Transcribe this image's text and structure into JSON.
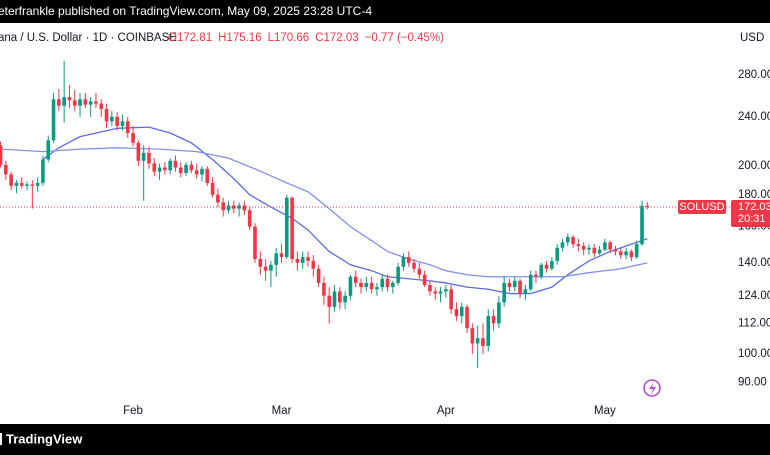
{
  "header": {
    "publish_note": "eterfrankle published on TradingView.com, May 09, 2025 23:28 UTC-4",
    "brand": "TradingView"
  },
  "chart_data": {
    "type": "candlestick",
    "title": "ana / U.S. Dollar · 1D · COINBASE",
    "ohlc": [
      "O172.81",
      "H175.16",
      "L170.66",
      "C172.03"
    ],
    "change": "−0.77 (−0.45%)",
    "currency": "USD",
    "symbol": "SOLUSD",
    "countdown": "20:31",
    "up_color": "#089981",
    "down_color": "#f23645",
    "open": [
      216,
      201,
      194,
      186,
      188,
      186,
      187,
      186,
      188,
      205,
      220,
      256,
      250,
      258,
      255,
      250,
      256,
      251,
      254,
      252,
      247,
      236,
      240,
      232,
      236,
      226,
      218,
      204,
      210,
      202,
      196,
      199,
      197,
      204,
      199,
      195,
      201,
      197,
      194,
      198,
      188,
      180,
      175,
      170,
      173,
      171,
      173,
      170,
      160,
      142,
      138,
      136,
      139,
      145,
      143,
      178,
      142,
      140,
      143,
      141,
      137,
      130,
      124,
      119,
      126,
      121,
      124,
      133,
      130,
      128,
      130,
      127,
      128,
      132,
      128,
      130,
      138,
      143,
      140,
      137,
      134,
      129,
      126,
      125,
      126,
      127,
      118,
      115,
      119,
      110,
      104,
      106,
      103,
      115,
      112,
      121,
      130,
      128,
      131,
      125,
      127,
      134,
      133,
      139,
      137,
      141,
      148,
      151,
      154,
      150,
      149,
      147,
      148,
      145,
      147,
      151,
      147,
      146,
      144,
      146,
      143,
      150,
      172.81
    ],
    "high": [
      219,
      204,
      196,
      190,
      192,
      189,
      190,
      192,
      208,
      224,
      262,
      266,
      295,
      270,
      265,
      262,
      262,
      258,
      262,
      256,
      252,
      245,
      244,
      242,
      240,
      232,
      220,
      216,
      215,
      206,
      202,
      203,
      206,
      208,
      203,
      203,
      204,
      202,
      200,
      200,
      192,
      184,
      178,
      176,
      176,
      175,
      176,
      172,
      162,
      146,
      142,
      141,
      148,
      150,
      180,
      179,
      146,
      146,
      146,
      144,
      139,
      133,
      128,
      129,
      128,
      126,
      134,
      136,
      132,
      133,
      133,
      130,
      134,
      134,
      131,
      140,
      145,
      146,
      142,
      140,
      136,
      131,
      128,
      128,
      129,
      129,
      121,
      121,
      120,
      112,
      111,
      112,
      118,
      118,
      124,
      133,
      132,
      133,
      132,
      129,
      136,
      136,
      140,
      141,
      143,
      150,
      153,
      156,
      155,
      153,
      151,
      150,
      150,
      149,
      153,
      152,
      149,
      148,
      148,
      147,
      152,
      176,
      175.16
    ],
    "low": [
      199,
      190,
      183,
      181,
      184,
      183,
      171,
      182,
      186,
      203,
      218,
      245,
      235,
      248,
      245,
      240,
      248,
      240,
      248,
      240,
      230,
      232,
      228,
      228,
      222,
      215,
      200,
      176,
      198,
      193,
      190,
      194,
      194,
      196,
      192,
      193,
      195,
      191,
      189,
      186,
      178,
      172,
      166,
      168,
      168,
      166,
      167,
      158,
      140,
      134,
      131,
      128,
      133,
      140,
      142,
      140,
      136,
      137,
      138,
      133,
      128,
      120,
      112,
      117,
      118,
      118,
      122,
      128,
      125,
      126,
      125,
      124,
      126,
      126,
      125,
      129,
      136,
      138,
      135,
      132,
      128,
      124,
      122,
      121,
      123,
      116,
      113,
      112,
      108,
      100,
      95,
      100,
      101,
      109,
      110,
      119,
      126,
      126,
      123,
      122,
      126,
      130,
      132,
      135,
      136,
      139,
      146,
      149,
      148,
      146,
      144,
      144,
      143,
      144,
      146,
      145,
      144,
      142,
      142,
      141,
      142,
      149,
      170.66
    ],
    "close": [
      201,
      194,
      186,
      188,
      186,
      187,
      186,
      188,
      205,
      220,
      256,
      250,
      258,
      255,
      250,
      256,
      251,
      254,
      252,
      247,
      236,
      240,
      232,
      236,
      226,
      218,
      204,
      210,
      202,
      196,
      199,
      197,
      204,
      199,
      195,
      201,
      197,
      194,
      198,
      188,
      180,
      175,
      170,
      173,
      171,
      173,
      170,
      160,
      142,
      138,
      136,
      139,
      145,
      143,
      178,
      142,
      140,
      143,
      141,
      137,
      130,
      124,
      119,
      126,
      121,
      124,
      133,
      130,
      128,
      130,
      127,
      128,
      132,
      128,
      130,
      138,
      143,
      140,
      137,
      134,
      129,
      126,
      125,
      126,
      127,
      118,
      115,
      119,
      110,
      104,
      106,
      103,
      115,
      112,
      121,
      130,
      128,
      131,
      125,
      127,
      134,
      133,
      139,
      137,
      141,
      148,
      151,
      154,
      150,
      149,
      147,
      148,
      145,
      147,
      151,
      147,
      146,
      144,
      146,
      143,
      150,
      172.81,
      172.03
    ],
    "series": [
      {
        "color": "#5a6de0",
        "x": [
          8,
          11,
          15,
          19,
          22,
          28,
          32,
          36,
          40,
          44,
          47,
          51,
          55,
          58,
          62,
          66,
          70,
          73,
          77,
          81,
          84,
          88,
          92,
          96,
          100,
          104,
          107,
          111,
          115,
          118,
          122
        ],
        "values": [
          205,
          214,
          223,
          227,
          230,
          231,
          226,
          218,
          205,
          191,
          180,
          172,
          165,
          158,
          146,
          139,
          136,
          133,
          132,
          131,
          130,
          128,
          127,
          125,
          125,
          128,
          134,
          141,
          146,
          149,
          153
        ]
      },
      {
        "color": "#7f92ee",
        "x": [
          0,
          8,
          15,
          22,
          30,
          37,
          43,
          48,
          54,
          58,
          62,
          66,
          70,
          73,
          77,
          81,
          84,
          88,
          92,
          96,
          100,
          106,
          111,
          117,
          122
        ],
        "values": [
          213,
          211,
          213,
          214,
          213,
          211,
          206,
          198,
          188,
          182,
          171,
          160,
          152,
          146,
          142,
          139,
          136,
          134,
          133,
          133,
          133,
          133,
          135,
          137,
          140
        ]
      }
    ],
    "xlim": [
      -0.1,
      137.6
    ],
    "xticks": [
      {
        "value": 25,
        "label": "Feb"
      },
      {
        "value": 53,
        "label": "Mar"
      },
      {
        "value": 84,
        "label": "Apr"
      },
      {
        "value": 114,
        "label": "May"
      }
    ],
    "ylim": [
      84.4,
      336.7
    ],
    "log_scale": true,
    "grid": false,
    "yticks": [
      {
        "value": 280,
        "label": "280.00"
      },
      {
        "value": 240,
        "label": "240.00"
      },
      {
        "value": 200,
        "label": "200.00"
      },
      {
        "value": 180,
        "label": "180.00"
      },
      {
        "value": 160,
        "label": "160.00"
      },
      {
        "value": 140,
        "label": "140.00"
      },
      {
        "value": 124,
        "label": "124.00"
      },
      {
        "value": 112,
        "label": "112.00"
      },
      {
        "value": 100,
        "label": "100.00"
      },
      {
        "value": 90,
        "label": "90.00"
      }
    ]
  }
}
